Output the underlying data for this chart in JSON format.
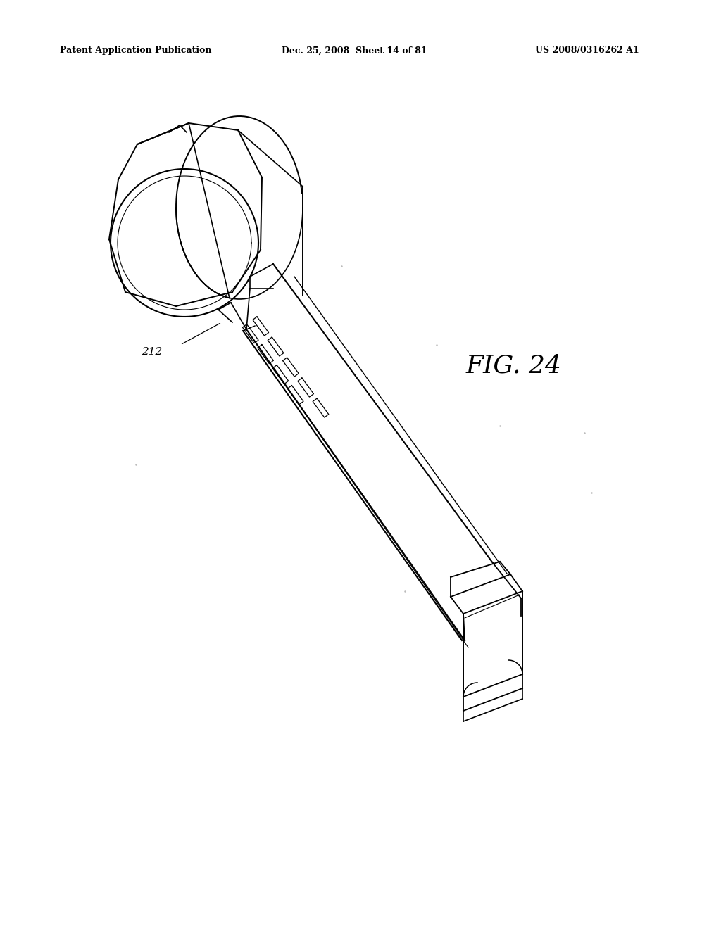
{
  "background_color": "#ffffff",
  "header_left": "Patent Application Publication",
  "header_center": "Dec. 25, 2008  Sheet 14 of 81",
  "header_right": "US 2008/0316262 A1",
  "fig_label": "FIG. 24",
  "part_label": "212",
  "line_color": "#000000"
}
